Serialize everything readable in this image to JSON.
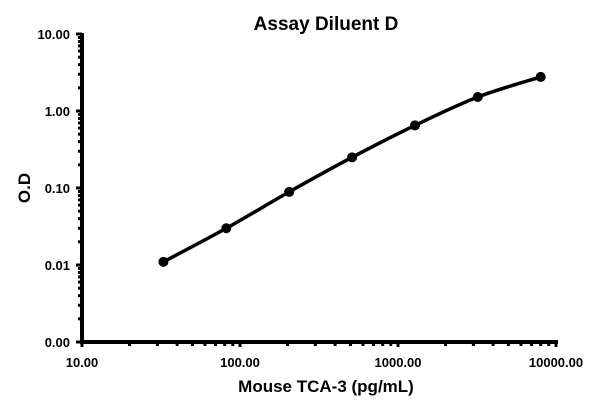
{
  "chart_data": {
    "type": "line",
    "title": "Assay Diluent D",
    "xlabel": "Mouse TCA-3 (pg/mL)",
    "ylabel": "O.D",
    "xscale": "log",
    "yscale": "log",
    "xlim": [
      10,
      10000
    ],
    "ylim": [
      0.001,
      10
    ],
    "x_tick_labels": [
      "10.00",
      "100.00",
      "1000.00",
      "10000.00"
    ],
    "y_tick_labels": [
      "0.00",
      "0.01",
      "0.10",
      "1.00",
      "10.00"
    ],
    "grid": false,
    "legend": null,
    "series": [
      {
        "name": "Assay Diluent D",
        "color": "#000000",
        "marker": "circle",
        "x": [
          32.77,
          81.92,
          204.8,
          512,
          1280,
          3200,
          8000
        ],
        "y": [
          0.011,
          0.03,
          0.089,
          0.25,
          0.65,
          1.52,
          2.77
        ]
      }
    ]
  },
  "labels": {
    "title": "Assay Diluent D",
    "xlabel": "Mouse TCA-3 (pg/mL)",
    "ylabel": "O.D",
    "x_ticks": [
      "10.00",
      "100.00",
      "1000.00",
      "10000.00"
    ],
    "y_ticks": [
      "10.00",
      "1.00",
      "0.10",
      "0.01",
      "0.00"
    ]
  }
}
